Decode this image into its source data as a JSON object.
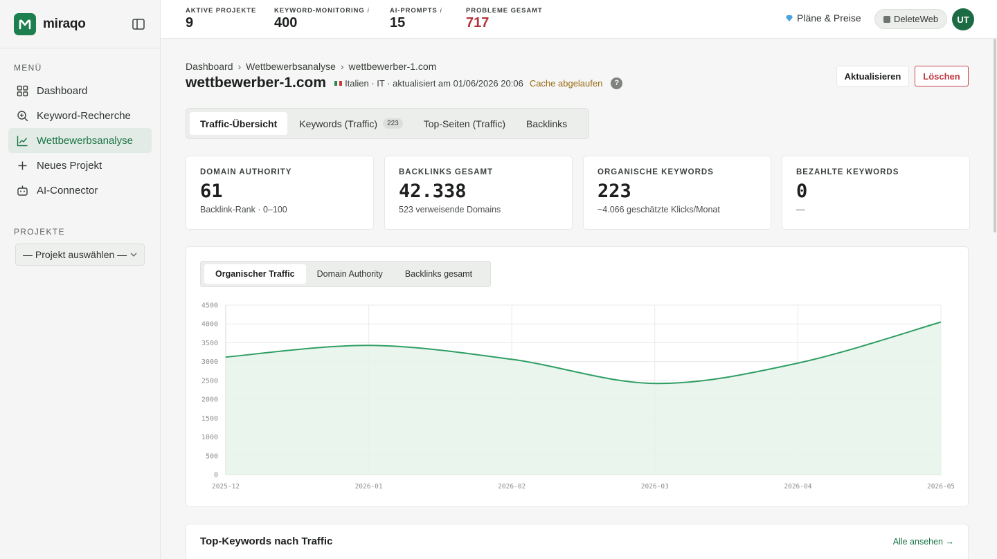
{
  "brand": {
    "name": "miraqo"
  },
  "sidebar": {
    "menu_label": "MENÜ",
    "items": [
      {
        "label": "Dashboard",
        "icon": "grid-icon"
      },
      {
        "label": "Keyword-Recherche",
        "icon": "search-plus-icon"
      },
      {
        "label": "Wettbewerbsanalyse",
        "icon": "line-chart-icon",
        "active": true
      },
      {
        "label": "Neues Projekt",
        "icon": "plus-icon"
      },
      {
        "label": "AI-Connector",
        "icon": "robot-icon"
      }
    ],
    "projects_label": "PROJEKTE",
    "project_select": "— Projekt auswählen —"
  },
  "topbar": {
    "stats": [
      {
        "label": "AKTIVE PROJEKTE",
        "value": "9",
        "info": ""
      },
      {
        "label": "KEYWORD-MONITORING",
        "value": "400",
        "info": "i"
      },
      {
        "label": "AI-PROMPTS",
        "value": "15",
        "info": "i"
      },
      {
        "label": "PROBLEME GESAMT",
        "value": "717",
        "info": ""
      }
    ],
    "plans": "Pläne & Preise",
    "workspace": "DeleteWeb",
    "avatar": "UT"
  },
  "breadcrumb": [
    "Dashboard",
    "Wettbewerbsanalyse",
    "wettbewerber-1.com"
  ],
  "page": {
    "title": "wettbewerber-1.com",
    "meta": "Italien · IT · aktualisiert am 01/06/2026 20:06",
    "cache": "Cache abgelaufen",
    "help": "?",
    "refresh_label": "Aktualisieren",
    "delete_label": "Löschen"
  },
  "tabs": [
    {
      "label": "Traffic-Übersicht",
      "active": true
    },
    {
      "label": "Keywords (Traffic)",
      "count": "223"
    },
    {
      "label": "Top-Seiten (Traffic)"
    },
    {
      "label": "Backlinks"
    }
  ],
  "cards": [
    {
      "label": "DOMAIN AUTHORITY",
      "value": "61",
      "sub": "Backlink-Rank · 0–100"
    },
    {
      "label": "BACKLINKS GESAMT",
      "value": "42.338",
      "sub": "523 verweisende Domains"
    },
    {
      "label": "ORGANISCHE KEYWORDS",
      "value": "223",
      "sub": "~4.066 geschätzte Klicks/Monat"
    },
    {
      "label": "BEZAHLTE KEYWORDS",
      "value": "0",
      "sub": "—"
    }
  ],
  "chart_tabs": [
    {
      "label": "Organischer Traffic",
      "active": true
    },
    {
      "label": "Domain Authority"
    },
    {
      "label": "Backlinks gesamt"
    }
  ],
  "chart_data": {
    "type": "area",
    "x": [
      "2025-12",
      "2026-01",
      "2026-02",
      "2026-03",
      "2026-04",
      "2026-05"
    ],
    "y_ticks": [
      0,
      500,
      1000,
      1500,
      2000,
      2500,
      3000,
      3500,
      4000,
      4500
    ],
    "ylim": [
      0,
      4500
    ],
    "series": [
      {
        "values": [
          3120,
          3430,
          3060,
          2420,
          2960,
          4050
        ]
      }
    ],
    "grid": true,
    "line_color": "#2e9e63",
    "fill_color": "#e6f3eb"
  },
  "top_keywords": {
    "title": "Top-Keywords nach Traffic",
    "link": "Alle ansehen →"
  },
  "colors": {
    "accent": "#1d7f4e",
    "danger": "#b3343c",
    "warning": "#9a6b16"
  }
}
